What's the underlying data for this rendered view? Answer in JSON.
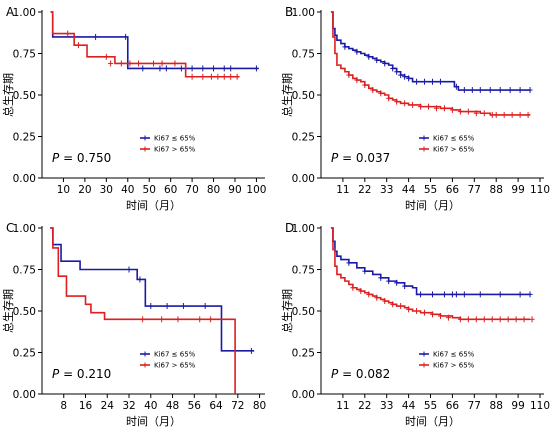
{
  "chart_data": [
    {
      "type": "line",
      "panel_label": "A",
      "xlabel": "时间（月）",
      "ylabel": "总生存期",
      "xlim": [
        0,
        104
      ],
      "ylim": [
        0,
        1.0
      ],
      "xticks": [
        10,
        20,
        30,
        40,
        50,
        60,
        70,
        80,
        90,
        100
      ],
      "yticks": [
        0.0,
        0.25,
        0.5,
        0.75,
        1.0
      ],
      "ytick_labels": [
        "0.00",
        "0.25",
        "0.50",
        "0.75",
        "1.00"
      ],
      "p_prefix": "P",
      "p_value": " = 0.750",
      "legend_position": "bottom-right",
      "series": [
        {
          "name": "Ki67 ≤ 65%",
          "color": "#1a1aa6",
          "x": [
            4,
            5,
            40,
            40,
            101
          ],
          "y": [
            1.0,
            0.85,
            0.85,
            0.66,
            0.66
          ],
          "censor_x": [
            25,
            39,
            47,
            55,
            58,
            65,
            70,
            75,
            80,
            85,
            88,
            100
          ],
          "censor_y": [
            0.85,
            0.85,
            0.66,
            0.66,
            0.66,
            0.66,
            0.66,
            0.66,
            0.66,
            0.66,
            0.66,
            0.66
          ]
        },
        {
          "name": "Ki67 > 65%",
          "color": "#dd1f1f",
          "x": [
            4,
            5,
            15,
            15,
            21,
            21,
            34,
            34,
            67,
            67,
            92
          ],
          "y": [
            1.0,
            0.87,
            0.87,
            0.8,
            0.8,
            0.73,
            0.73,
            0.69,
            0.69,
            0.61,
            0.61
          ],
          "censor_x": [
            12,
            17,
            30,
            32,
            37,
            41,
            45,
            52,
            56,
            62,
            70,
            75,
            79,
            82,
            85,
            88,
            91
          ],
          "censor_y": [
            0.87,
            0.8,
            0.73,
            0.69,
            0.69,
            0.69,
            0.69,
            0.69,
            0.69,
            0.69,
            0.61,
            0.61,
            0.61,
            0.61,
            0.61,
            0.61,
            0.61
          ]
        }
      ]
    },
    {
      "type": "line",
      "panel_label": "B",
      "xlabel": "时间（月）",
      "ylabel": "总生存期",
      "xlim": [
        0,
        112
      ],
      "ylim": [
        0,
        1.0
      ],
      "xticks": [
        11,
        22,
        33,
        44,
        55,
        66,
        77,
        88,
        99,
        110
      ],
      "yticks": [
        0.0,
        0.25,
        0.5,
        0.75,
        1.0
      ],
      "ytick_labels": [
        "0.00",
        "0.25",
        "0.50",
        "0.75",
        "1.00"
      ],
      "p_prefix": "P",
      "p_value": " = 0.037",
      "legend_position": "bottom-right",
      "series": [
        {
          "name": "Ki67 ≤ 65%",
          "color": "#1a1aa6",
          "x": [
            5,
            6,
            7,
            8,
            10,
            12,
            14,
            16,
            18,
            20,
            22,
            24,
            26,
            28,
            30,
            32,
            34,
            36,
            38,
            40,
            42,
            44,
            46,
            50,
            56,
            60,
            66,
            67,
            69,
            71,
            75,
            80,
            85,
            90,
            95,
            100,
            105
          ],
          "y": [
            1.0,
            0.9,
            0.86,
            0.83,
            0.81,
            0.79,
            0.78,
            0.77,
            0.76,
            0.75,
            0.74,
            0.73,
            0.72,
            0.71,
            0.7,
            0.69,
            0.68,
            0.66,
            0.64,
            0.62,
            0.61,
            0.6,
            0.58,
            0.58,
            0.58,
            0.58,
            0.58,
            0.55,
            0.53,
            0.53,
            0.53,
            0.53,
            0.53,
            0.53,
            0.53,
            0.53,
            0.53
          ],
          "censor_x": [
            12,
            18,
            24,
            28,
            32,
            36,
            38,
            40,
            42,
            44,
            48,
            52,
            56,
            60,
            68,
            72,
            76,
            80,
            85,
            90,
            95,
            100,
            105
          ],
          "censor_y": [
            0.79,
            0.76,
            0.73,
            0.71,
            0.69,
            0.66,
            0.64,
            0.62,
            0.61,
            0.6,
            0.58,
            0.58,
            0.58,
            0.58,
            0.55,
            0.53,
            0.53,
            0.53,
            0.53,
            0.53,
            0.53,
            0.53,
            0.53
          ]
        },
        {
          "name": "Ki67 > 65%",
          "color": "#dd1f1f",
          "x": [
            5,
            6,
            7,
            8,
            10,
            12,
            14,
            16,
            18,
            20,
            22,
            24,
            26,
            28,
            30,
            32,
            34,
            36,
            38,
            40,
            42,
            44,
            46,
            50,
            56,
            60,
            66,
            70,
            75,
            80,
            85,
            90,
            95,
            100,
            105
          ],
          "y": [
            1.0,
            0.85,
            0.75,
            0.68,
            0.66,
            0.64,
            0.62,
            0.6,
            0.59,
            0.58,
            0.56,
            0.54,
            0.53,
            0.52,
            0.51,
            0.5,
            0.48,
            0.47,
            0.46,
            0.45,
            0.45,
            0.44,
            0.44,
            0.43,
            0.43,
            0.42,
            0.41,
            0.4,
            0.4,
            0.39,
            0.38,
            0.38,
            0.38,
            0.38,
            0.38
          ],
          "censor_x": [
            14,
            18,
            22,
            26,
            30,
            34,
            38,
            42,
            46,
            50,
            54,
            58,
            62,
            66,
            70,
            74,
            78,
            82,
            86,
            88,
            92,
            96,
            100,
            104
          ],
          "censor_y": [
            0.62,
            0.59,
            0.56,
            0.53,
            0.51,
            0.48,
            0.46,
            0.45,
            0.44,
            0.43,
            0.43,
            0.42,
            0.42,
            0.41,
            0.4,
            0.4,
            0.39,
            0.39,
            0.38,
            0.38,
            0.38,
            0.38,
            0.38,
            0.38
          ]
        }
      ]
    },
    {
      "type": "line",
      "panel_label": "C",
      "xlabel": "时间（月）",
      "ylabel": "总生存期",
      "xlim": [
        0,
        82
      ],
      "ylim": [
        0,
        1.0
      ],
      "xticks": [
        8,
        16,
        24,
        32,
        40,
        48,
        56,
        64,
        72,
        80
      ],
      "yticks": [
        0.0,
        0.25,
        0.5,
        0.75,
        1.0
      ],
      "ytick_labels": [
        "0.00",
        "0.25",
        "0.50",
        "0.75",
        "1.00"
      ],
      "p_prefix": "P",
      "p_value": " = 0.210",
      "legend_position": "bottom-right",
      "series": [
        {
          "name": "Ki67 ≤ 65%",
          "color": "#1a1aa6",
          "x": [
            3,
            4,
            7,
            7,
            14,
            14,
            35,
            35,
            38,
            38,
            66,
            66,
            78
          ],
          "y": [
            1.0,
            0.9,
            0.9,
            0.8,
            0.8,
            0.75,
            0.75,
            0.69,
            0.69,
            0.53,
            0.53,
            0.26,
            0.26
          ],
          "censor_x": [
            32,
            36,
            40,
            46,
            52,
            60,
            77
          ],
          "censor_y": [
            0.75,
            0.69,
            0.53,
            0.53,
            0.53,
            0.53,
            0.26
          ]
        },
        {
          "name": "Ki67 > 65%",
          "color": "#dd1f1f",
          "x": [
            3,
            4,
            6,
            6,
            9,
            9,
            16,
            16,
            18,
            18,
            23,
            23,
            71,
            71
          ],
          "y": [
            1.0,
            0.88,
            0.88,
            0.71,
            0.71,
            0.59,
            0.59,
            0.54,
            0.54,
            0.49,
            0.49,
            0.45,
            0.45,
            0.0
          ],
          "censor_x": [
            37,
            44,
            50,
            58,
            62
          ],
          "censor_y": [
            0.45,
            0.45,
            0.45,
            0.45,
            0.45
          ]
        }
      ]
    },
    {
      "type": "line",
      "panel_label": "D",
      "xlabel": "时间（月）",
      "ylabel": "总生存期",
      "xlim": [
        0,
        112
      ],
      "ylim": [
        0,
        1.0
      ],
      "xticks": [
        11,
        22,
        33,
        44,
        55,
        66,
        77,
        88,
        99,
        110
      ],
      "yticks": [
        0.0,
        0.25,
        0.5,
        0.75,
        1.0
      ],
      "ytick_labels": [
        "0.00",
        "0.25",
        "0.50",
        "0.75",
        "1.00"
      ],
      "p_prefix": "P",
      "p_value": " = 0.082",
      "legend_position": "bottom-right",
      "series": [
        {
          "name": "Ki67 ≤ 65%",
          "color": "#1a1aa6",
          "x": [
            5,
            6,
            7,
            8,
            10,
            14,
            18,
            22,
            26,
            30,
            34,
            38,
            42,
            46,
            48,
            50,
            60,
            70,
            80,
            90,
            100,
            105
          ],
          "y": [
            1.0,
            0.92,
            0.86,
            0.83,
            0.81,
            0.79,
            0.76,
            0.74,
            0.72,
            0.7,
            0.68,
            0.67,
            0.65,
            0.64,
            0.6,
            0.6,
            0.6,
            0.6,
            0.6,
            0.6,
            0.6,
            0.6
          ],
          "censor_x": [
            14,
            22,
            30,
            34,
            38,
            42,
            50,
            56,
            62,
            66,
            68,
            72,
            80,
            90,
            100,
            105
          ],
          "censor_y": [
            0.79,
            0.74,
            0.7,
            0.68,
            0.67,
            0.65,
            0.6,
            0.6,
            0.6,
            0.6,
            0.6,
            0.6,
            0.6,
            0.6,
            0.6,
            0.6
          ]
        },
        {
          "name": "Ki67 > 65%",
          "color": "#dd1f1f",
          "x": [
            5,
            6,
            7,
            8,
            10,
            12,
            14,
            16,
            18,
            20,
            22,
            24,
            26,
            28,
            30,
            32,
            34,
            36,
            38,
            40,
            42,
            44,
            46,
            50,
            56,
            60,
            66,
            70,
            80,
            90,
            100,
            105
          ],
          "y": [
            1.0,
            0.87,
            0.77,
            0.72,
            0.7,
            0.68,
            0.66,
            0.64,
            0.63,
            0.62,
            0.61,
            0.6,
            0.59,
            0.58,
            0.57,
            0.56,
            0.55,
            0.54,
            0.53,
            0.53,
            0.52,
            0.51,
            0.5,
            0.49,
            0.48,
            0.47,
            0.46,
            0.45,
            0.45,
            0.45,
            0.45,
            0.45
          ],
          "censor_x": [
            16,
            20,
            24,
            28,
            32,
            36,
            40,
            44,
            48,
            52,
            56,
            60,
            64,
            70,
            74,
            78,
            82,
            86,
            90,
            94,
            98,
            102,
            106
          ],
          "censor_y": [
            0.64,
            0.62,
            0.6,
            0.58,
            0.56,
            0.54,
            0.53,
            0.51,
            0.5,
            0.49,
            0.48,
            0.47,
            0.46,
            0.45,
            0.45,
            0.45,
            0.45,
            0.45,
            0.45,
            0.45,
            0.45,
            0.45,
            0.45
          ]
        }
      ]
    }
  ]
}
